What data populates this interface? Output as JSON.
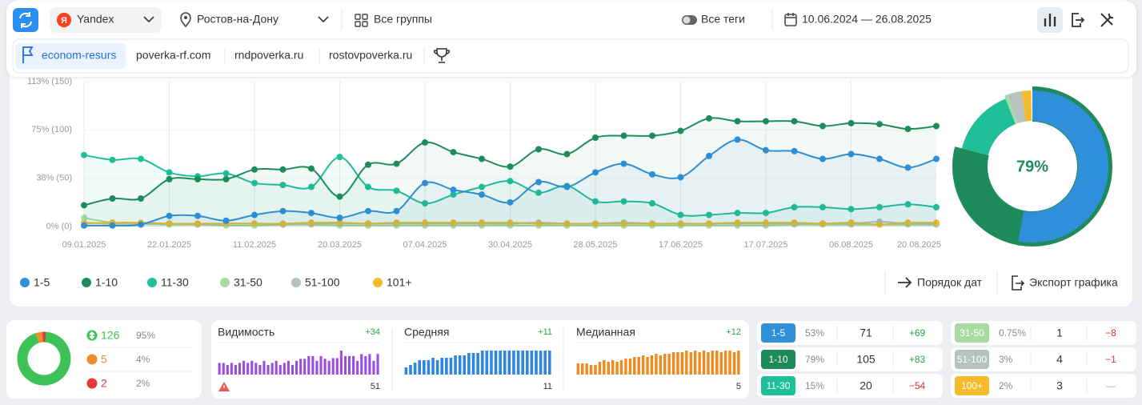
{
  "toolbar": {
    "engine_logo": "Я",
    "engine": "Yandex",
    "region": "Ростов-на-Дону",
    "groups": "Все группы",
    "tags": "Все теги",
    "dates": "10.06.2024 — 26.08.2025"
  },
  "sites": [
    "econom-resurs",
    "poverka-rf.com",
    "rndpoverka.ru",
    "rostovpoverka.ru"
  ],
  "chart_data": {
    "type": "line",
    "categories": [
      "09.01.2025",
      null,
      null,
      "22.01.2025",
      null,
      null,
      "11.02.2025",
      null,
      null,
      "20.03.2025",
      null,
      null,
      "07.04.2025",
      null,
      null,
      "30.04.2025",
      null,
      null,
      "28.05.2025",
      null,
      null,
      "17.06.2025",
      null,
      null,
      "17.07.2025",
      null,
      null,
      "06.08.2025",
      null,
      null,
      "20.08.2025"
    ],
    "series": [
      {
        "name": "1-5",
        "color": "#2f8fdb",
        "values": [
          1,
          1,
          2,
          11,
          11,
          6,
          12,
          16,
          14,
          9,
          16,
          16,
          45,
          38,
          33,
          25,
          46,
          41,
          56,
          65,
          54,
          51,
          73,
          90,
          79,
          78,
          70,
          75,
          70,
          61,
          70
        ]
      },
      {
        "name": "1-10",
        "color": "#1e8c5a",
        "values": [
          22,
          29,
          29,
          49,
          49,
          49,
          59,
          59,
          60,
          31,
          64,
          65,
          87,
          77,
          70,
          62,
          80,
          75,
          92,
          94,
          94,
          99,
          112,
          109,
          109,
          109,
          104,
          107,
          106,
          101,
          104
        ]
      },
      {
        "name": "11-30",
        "color": "#1fbf99",
        "values": [
          74,
          69,
          70,
          56,
          52,
          55,
          45,
          43,
          41,
          72,
          41,
          37,
          24,
          33,
          41,
          47,
          35,
          42,
          26,
          26,
          24,
          12,
          12,
          14,
          14,
          20,
          20,
          18,
          20,
          23,
          20
        ]
      },
      {
        "name": "31-50",
        "color": "#a6dca0",
        "values": [
          9,
          4,
          3,
          2,
          2,
          1,
          1,
          2,
          2,
          1,
          1,
          1,
          1,
          1,
          1,
          1,
          1,
          1,
          1,
          1,
          1,
          1,
          1,
          1,
          1,
          2,
          2,
          2,
          2,
          2,
          2
        ]
      },
      {
        "name": "51-100",
        "color": "#b5c2be",
        "values": [
          4,
          3,
          3,
          3,
          2,
          3,
          3,
          2,
          3,
          3,
          3,
          3,
          3,
          3,
          3,
          3,
          4,
          3,
          3,
          4,
          3,
          3,
          3,
          3,
          3,
          3,
          3,
          3,
          5,
          3,
          3
        ]
      },
      {
        "name": "101+",
        "color": "#f4bc2a",
        "values": [
          3,
          4,
          4,
          3,
          3,
          3,
          3,
          3,
          4,
          4,
          3,
          4,
          4,
          4,
          4,
          4,
          3,
          3,
          3,
          3,
          3,
          3,
          3,
          4,
          4,
          4,
          3,
          4,
          2,
          4,
          4
        ]
      }
    ],
    "ylim": [
      0,
      150
    ],
    "yticks": [
      {
        "value": 0,
        "label": "0% (0)"
      },
      {
        "value": 50,
        "label": "38% (50)"
      },
      {
        "value": 100,
        "label": "75% (100)"
      },
      {
        "value": 150,
        "label": "113% (150)"
      }
    ],
    "grid": true
  },
  "legend_actions": [
    "Порядок дат",
    "Экспорт графика"
  ],
  "summary": [
    {
      "count": 126,
      "share": 95,
      "share_label": "95%",
      "color": "#3dc257"
    },
    {
      "count": 5,
      "share": 4,
      "share_label": "4%",
      "color": "#f08c2e"
    },
    {
      "count": 2,
      "share": 2,
      "share_label": "2%",
      "color": "#e23a3a"
    }
  ],
  "metrics": [
    {
      "title": "Видимость",
      "delta": "+34",
      "value": 51,
      "color": "#9b4de0",
      "bars": [
        17,
        17,
        14,
        17,
        14,
        17,
        20,
        17,
        20,
        17,
        14,
        20,
        14,
        17,
        20,
        14,
        17,
        20,
        14,
        20,
        23,
        23,
        27,
        27,
        20,
        27,
        23,
        20,
        24,
        24,
        35,
        27,
        27,
        27,
        20,
        30,
        27,
        30,
        20,
        30
      ]
    },
    {
      "title": "Средняя",
      "delta": "+11",
      "value": 11,
      "color": "#2f86e0",
      "bars": [
        3,
        4,
        5,
        6,
        6,
        6,
        7,
        6,
        7,
        7,
        7,
        8,
        8,
        8,
        9,
        9,
        9,
        10,
        10,
        10,
        10,
        10,
        10,
        10,
        10,
        10,
        10,
        10,
        10,
        10,
        10,
        10,
        10
      ]
    },
    {
      "title": "Медианная",
      "delta": "+12",
      "value": 5,
      "color": "#ef8a1f",
      "bars": [
        7,
        7,
        7,
        6,
        6,
        8,
        9,
        8,
        9,
        8,
        9,
        10,
        10,
        11,
        11,
        12,
        11,
        12,
        13,
        12,
        13,
        13,
        14,
        14,
        14,
        15,
        14,
        15,
        14,
        15,
        14,
        15,
        15,
        14,
        15,
        15,
        14,
        15
      ]
    }
  ],
  "positions": [
    {
      "range": "1-5",
      "share": 53,
      "share_label": "53%",
      "count": 71,
      "delta": "+69",
      "color": "#2f8fdb"
    },
    {
      "range": "1-10",
      "share": 79,
      "share_label": "79%",
      "count": 105,
      "delta": "+83",
      "color": "#1e8c5a"
    },
    {
      "range": "11-30",
      "share": 15,
      "share_label": "15%",
      "count": 20,
      "delta": "−54",
      "color": "#1fbf99"
    },
    {
      "range": "31-50",
      "share": 0.75,
      "share_label": "0.75%",
      "count": 1,
      "delta": "−8",
      "color": "#a6dca0"
    },
    {
      "range": "51-100",
      "share": 3,
      "share_label": "3%",
      "count": 4,
      "delta": "−1",
      "color": "#b5c2be"
    },
    {
      "range": "100+",
      "share": 2,
      "share_label": "2%",
      "count": 3,
      "delta": "—",
      "color": "#f4bc2a"
    }
  ]
}
